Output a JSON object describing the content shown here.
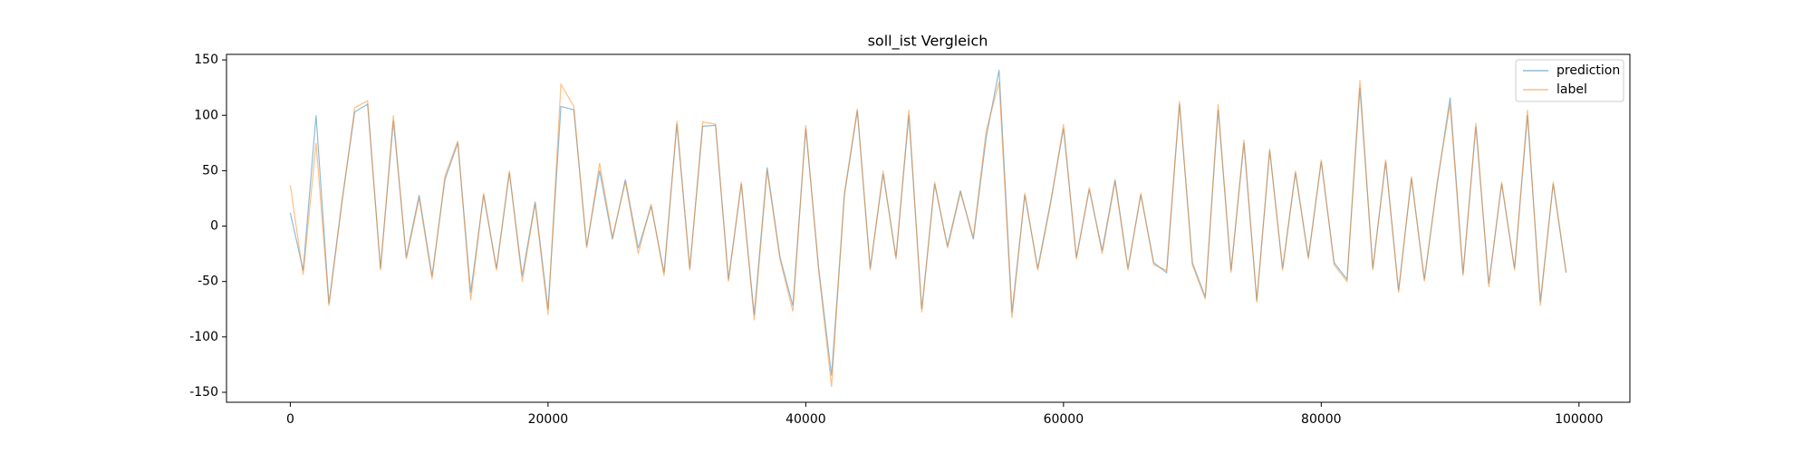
{
  "chart_data": {
    "type": "line",
    "title": "soll_ist Vergleich",
    "title_color": "#ff0000",
    "x": [
      0,
      1000,
      2000,
      3000,
      4000,
      5000,
      6000,
      7000,
      8000,
      9000,
      10000,
      11000,
      12000,
      13000,
      14000,
      15000,
      16000,
      17000,
      18000,
      19000,
      20000,
      21000,
      22000,
      23000,
      24000,
      25000,
      26000,
      27000,
      28000,
      29000,
      30000,
      31000,
      32000,
      33000,
      34000,
      35000,
      36000,
      37000,
      38000,
      39000,
      40000,
      41000,
      42000,
      43000,
      44000,
      45000,
      46000,
      47000,
      48000,
      49000,
      50000,
      51000,
      52000,
      53000,
      54000,
      55000,
      56000,
      57000,
      58000,
      59000,
      60000,
      61000,
      62000,
      63000,
      64000,
      65000,
      66000,
      67000,
      68000,
      69000,
      70000,
      71000,
      72000,
      73000,
      74000,
      75000,
      76000,
      77000,
      78000,
      79000,
      80000,
      81000,
      82000,
      83000,
      84000,
      85000,
      86000,
      87000,
      88000,
      89000,
      90000,
      91000,
      92000,
      93000,
      94000,
      95000,
      96000,
      97000,
      98000,
      99000
    ],
    "series": [
      {
        "name": "prediction",
        "color": "#1f77b4",
        "values": [
          12,
          -40,
          100,
          -70,
          22,
          103,
          110,
          -38,
          95,
          -28,
          28,
          -45,
          42,
          75,
          -60,
          28,
          -38,
          48,
          -45,
          22,
          -75,
          108,
          105,
          -18,
          50,
          -12,
          42,
          -20,
          18,
          -42,
          92,
          -38,
          90,
          91,
          -48,
          38,
          -80,
          53,
          -28,
          -72,
          88,
          -38,
          -135,
          28,
          104,
          -38,
          47,
          -28,
          100,
          -75,
          38,
          -18,
          32,
          -12,
          80,
          141,
          -78,
          28,
          -38,
          22,
          88,
          -28,
          33,
          -22,
          42,
          -38,
          28,
          -33,
          -42,
          110,
          -33,
          -64,
          105,
          -40,
          75,
          -67,
          68,
          -38,
          48,
          -28,
          58,
          -33,
          -48,
          125,
          -38,
          58,
          -58,
          43,
          -48,
          38,
          116,
          -43,
          90,
          -52,
          38,
          -38,
          100,
          -68,
          38,
          -42
        ]
      },
      {
        "name": "label",
        "color": "#ff7f0e",
        "values": [
          37,
          -44,
          75,
          -72,
          20,
          107,
          113,
          -40,
          100,
          -30,
          25,
          -48,
          45,
          77,
          -67,
          30,
          -40,
          50,
          -50,
          20,
          -80,
          128,
          108,
          -20,
          57,
          -10,
          40,
          -25,
          20,
          -45,
          95,
          -40,
          94,
          92,
          -50,
          40,
          -85,
          50,
          -30,
          -77,
          91,
          -40,
          -145,
          30,
          106,
          -40,
          50,
          -30,
          105,
          -78,
          40,
          -20,
          30,
          -10,
          86,
          130,
          -83,
          30,
          -40,
          20,
          92,
          -30,
          35,
          -25,
          40,
          -40,
          30,
          -35,
          -40,
          113,
          -35,
          -66,
          110,
          -42,
          78,
          -69,
          70,
          -40,
          50,
          -30,
          60,
          -35,
          -50,
          132,
          -40,
          60,
          -60,
          45,
          -50,
          40,
          110,
          -45,
          93,
          -55,
          40,
          -40,
          105,
          -72,
          40,
          -42
        ]
      }
    ],
    "opacity": 0.5,
    "xlim": [
      -4950,
      103950
    ],
    "ylim": [
      -159,
      155
    ],
    "xticks": [
      0,
      20000,
      40000,
      60000,
      80000,
      100000
    ],
    "yticks": [
      -150,
      -100,
      -50,
      0,
      50,
      100,
      150
    ],
    "legend": "upper right",
    "grid": false
  }
}
